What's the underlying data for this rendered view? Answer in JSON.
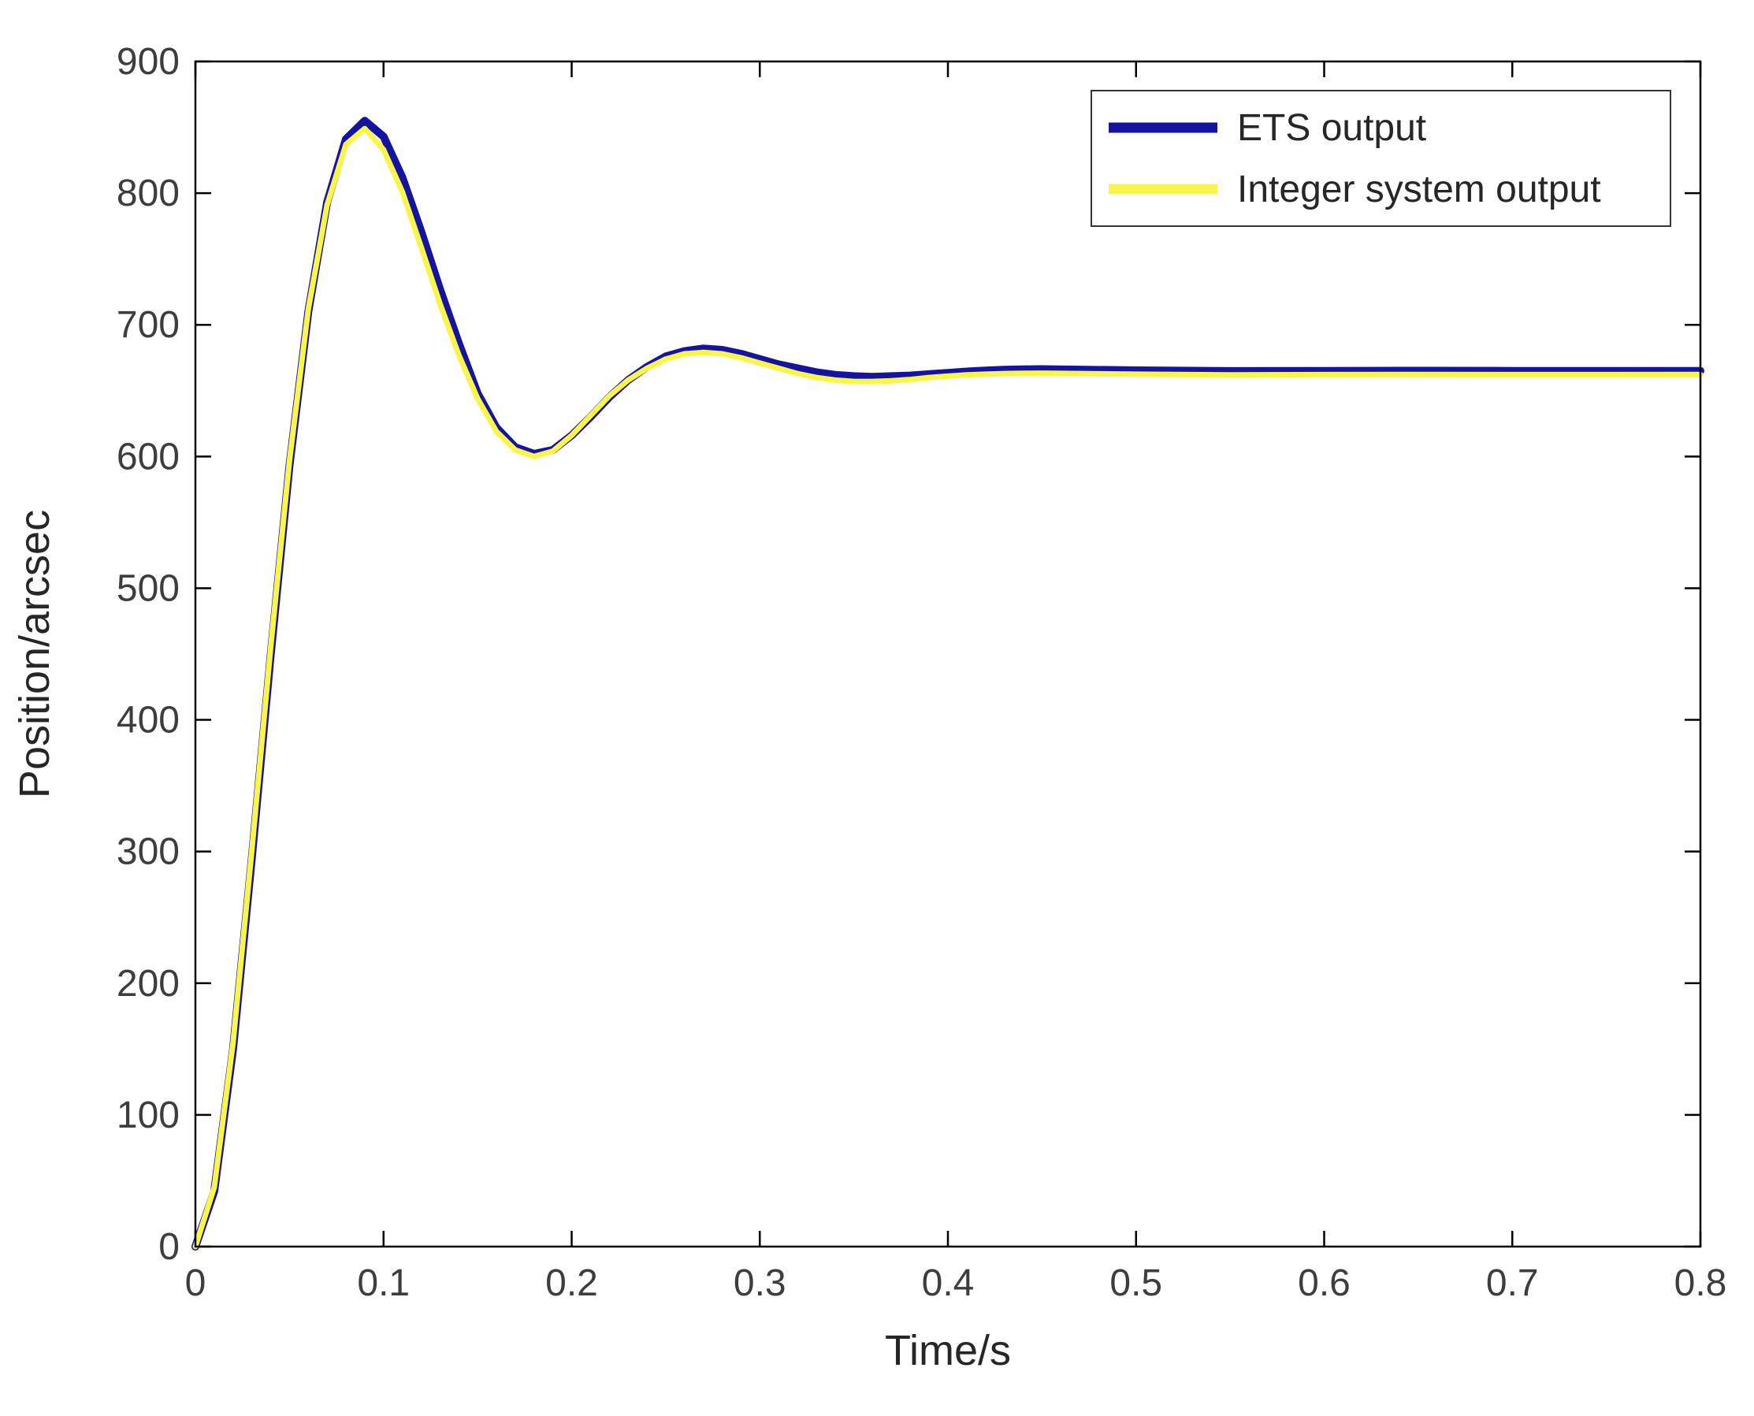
{
  "figure": {
    "background": "#ffffff",
    "axes_color": "#000000",
    "tick_label_color": "#3d3d3d",
    "axis_label_color": "#262626",
    "legend_border_color": "#333333"
  },
  "chart_data": {
    "type": "line",
    "title": "",
    "xlabel": "Time/s",
    "ylabel": "Position/arcsec",
    "xlim": [
      0,
      0.8
    ],
    "ylim": [
      0,
      900
    ],
    "xticks": [
      0,
      0.1,
      0.2,
      0.3,
      0.4,
      0.5,
      0.6,
      0.7,
      0.8
    ],
    "xtick_labels": [
      "0",
      "0.1",
      "0.2",
      "0.3",
      "0.4",
      "0.5",
      "0.6",
      "0.7",
      "0.8"
    ],
    "yticks": [
      0,
      100,
      200,
      300,
      400,
      500,
      600,
      700,
      800,
      900
    ],
    "ytick_labels": [
      "0",
      "100",
      "200",
      "300",
      "400",
      "500",
      "600",
      "700",
      "800",
      "900"
    ],
    "grid": false,
    "legend": {
      "position": "top-right",
      "border": true,
      "entries": [
        {
          "label": "ETS output",
          "color": "#1414a0"
        },
        {
          "label": "Integer system output",
          "color": "#f9f54b"
        }
      ]
    },
    "x": [
      0,
      0.01,
      0.02,
      0.03,
      0.04,
      0.05,
      0.06,
      0.07,
      0.08,
      0.09,
      0.1,
      0.11,
      0.12,
      0.13,
      0.14,
      0.15,
      0.16,
      0.17,
      0.18,
      0.19,
      0.2,
      0.21,
      0.22,
      0.23,
      0.24,
      0.25,
      0.26,
      0.27,
      0.28,
      0.29,
      0.3,
      0.31,
      0.32,
      0.33,
      0.34,
      0.35,
      0.36,
      0.37,
      0.38,
      0.39,
      0.4,
      0.41,
      0.42,
      0.43,
      0.44,
      0.45,
      0.5,
      0.55,
      0.6,
      0.65,
      0.7,
      0.75,
      0.8
    ],
    "series": [
      {
        "name": "ETS output",
        "color": "#1414a0",
        "width": 10,
        "values": [
          0,
          42,
          150,
          295,
          449,
          593,
          710,
          793,
          841,
          855,
          843,
          812,
          771,
          727,
          686,
          648,
          622,
          607,
          602,
          605,
          616,
          630,
          645,
          658,
          668,
          676,
          680,
          682,
          681,
          678,
          674,
          670,
          667,
          664,
          662,
          661,
          660.5,
          661,
          661.5,
          662.5,
          663.5,
          664.5,
          665.3,
          665.9,
          666.2,
          666.3,
          665.4,
          664.9,
          665,
          665.1,
          665,
          665,
          665
        ]
      },
      {
        "name": "Integer system output",
        "color": "#f9f54b",
        "width": 7,
        "values": [
          0,
          45,
          155,
          301,
          455,
          597,
          712,
          791,
          837,
          849,
          833,
          801,
          759,
          716,
          677,
          644,
          619,
          605,
          600,
          604,
          616,
          631,
          646,
          658,
          667,
          674,
          678,
          679,
          678,
          675,
          671,
          667,
          663,
          660,
          658,
          657,
          657,
          657.5,
          658.5,
          660,
          661,
          662,
          662.5,
          663,
          663.2,
          663.3,
          662.5,
          662,
          662.2,
          662.3,
          662.2,
          662.2,
          662.3
        ]
      }
    ]
  }
}
